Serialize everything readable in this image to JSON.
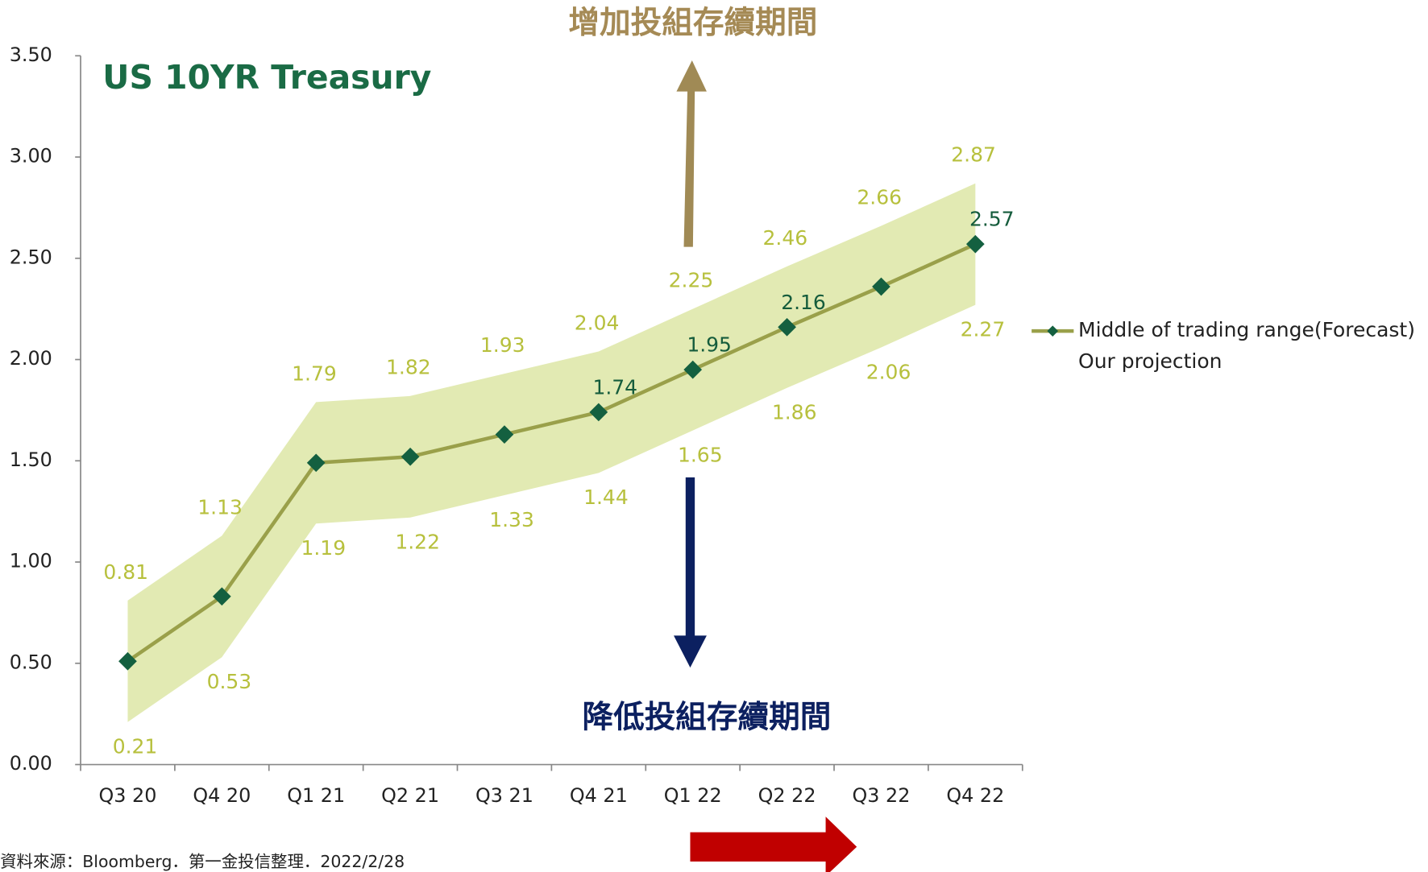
{
  "chart_data": {
    "type": "line",
    "title": "US 10YR Treasury",
    "categories": [
      "Q3 20",
      "Q4 20",
      "Q1 21",
      "Q2 21",
      "Q3 21",
      "Q4 21",
      "Q1 22",
      "Q2 22",
      "Q3 22",
      "Q4 22"
    ],
    "series": [
      {
        "name": "Middle of trading range(Forecast)",
        "color": "#9aa04a",
        "marker_color": "#146040",
        "values": [
          0.51,
          0.83,
          1.49,
          1.52,
          1.63,
          1.74,
          1.95,
          2.16,
          2.36,
          2.57
        ],
        "value_labels": [
          null,
          null,
          null,
          null,
          null,
          "1.74",
          "1.95",
          "2.16",
          null,
          "2.57"
        ]
      }
    ],
    "band": {
      "name": "Our projection",
      "color": "#e2eab3",
      "upper": [
        0.81,
        1.13,
        1.79,
        1.82,
        1.93,
        2.04,
        2.25,
        2.46,
        2.66,
        2.87
      ],
      "lower": [
        0.21,
        0.53,
        1.19,
        1.22,
        1.33,
        1.44,
        1.65,
        1.86,
        2.06,
        2.27
      ]
    },
    "ylim": [
      0,
      3.5
    ],
    "yticks": [
      {
        "value": 0,
        "label": "0.00"
      },
      {
        "value": 0.5,
        "label": "0.50"
      },
      {
        "value": 1,
        "label": "1.00"
      },
      {
        "value": 1.5,
        "label": "1.50"
      },
      {
        "value": 2,
        "label": "2.00"
      },
      {
        "value": 2.5,
        "label": "2.50"
      },
      {
        "value": 3,
        "label": "3.00"
      },
      {
        "value": 3.5,
        "label": "3.50"
      }
    ],
    "legend": "right",
    "annotations": {
      "increase": "增加投組存續期間",
      "decrease": "降低投組存續期間"
    },
    "source": "資料來源：Bloomberg．第一金投信整理．2022/2/28"
  }
}
